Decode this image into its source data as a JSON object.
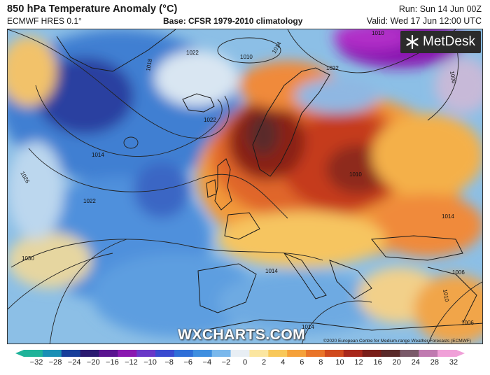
{
  "header": {
    "title": "850 hPa Temperature Anomaly (°C)",
    "model": "ECMWF HRES 0.1°",
    "base": "Base: CFSR 1979-2010 climatology",
    "run": "Run: Sun 14 Jun 00Z",
    "valid": "Valid: Wed 17 Jun 12:00 UTC"
  },
  "logo": {
    "text": "MetDesk",
    "icon": "metdesk-logo-icon"
  },
  "watermark": "WXCHARTS.COM",
  "copyright": "©2020 European Centre for Medium-range Weather Forecasts (ECMWF)",
  "isobar_labels": [
    "1010",
    "1014",
    "1018",
    "1022",
    "1010",
    "1006",
    "1022",
    "1014",
    "1026",
    "1022",
    "1030",
    "1014",
    "1014",
    "1006",
    "1010",
    "1006",
    "1014",
    "1010",
    "1022"
  ],
  "colorbar": {
    "ticks": [
      "−32",
      "−28",
      "−24",
      "−20",
      "−16",
      "−12",
      "−10",
      "−8",
      "−6",
      "−4",
      "−2",
      "0",
      "2",
      "4",
      "6",
      "8",
      "10",
      "12",
      "16",
      "20",
      "24",
      "28",
      "32"
    ],
    "colors": [
      "#1fb39a",
      "#1a8fb5",
      "#183f9a",
      "#2a1a70",
      "#5a1490",
      "#8a18b0",
      "#6a38c8",
      "#3a4bd0",
      "#2f6fd8",
      "#3f8fe0",
      "#7ab8ec",
      "#e8eef4",
      "#fbe6a0",
      "#f8c85a",
      "#f5a13a",
      "#e9752a",
      "#d04a1e",
      "#a8281c",
      "#7a1f1a",
      "#5a2a2a",
      "#7a5a6a",
      "#c07ab0",
      "#f0a0d8"
    ]
  }
}
